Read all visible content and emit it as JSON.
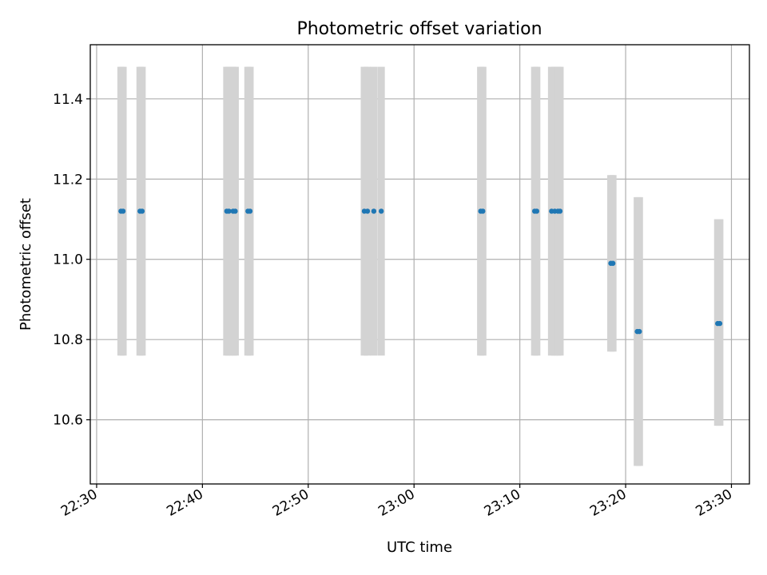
{
  "chart_data": {
    "type": "scatter",
    "title": "Photometric offset variation",
    "xlabel": "UTC time",
    "ylabel": "Photometric offset",
    "x_ticks": [
      "22:30",
      "22:40",
      "22:50",
      "23:00",
      "23:10",
      "23:20",
      "23:30"
    ],
    "y_ticks": [
      "10.6",
      "10.8",
      "11.0",
      "11.2",
      "11.4"
    ],
    "xlim": [
      "22:29.4",
      "23:31.7"
    ],
    "ylim": [
      10.44,
      11.535
    ],
    "grid": true,
    "colors": {
      "points": "#1f77b4",
      "error_bars": "#d3d3d3",
      "grid": "#b0b0b0"
    },
    "points": [
      {
        "x": "22:32.3",
        "y": 11.12,
        "err_low": 10.76,
        "err_high": 11.48
      },
      {
        "x": "22:32.5",
        "y": 11.12,
        "err_low": 10.76,
        "err_high": 11.48
      },
      {
        "x": "22:34.1",
        "y": 11.12,
        "err_low": 10.76,
        "err_high": 11.48
      },
      {
        "x": "22:34.3",
        "y": 11.12,
        "err_low": 10.76,
        "err_high": 11.48
      },
      {
        "x": "22:42.3",
        "y": 11.12,
        "err_low": 10.76,
        "err_high": 11.48
      },
      {
        "x": "22:42.5",
        "y": 11.12,
        "err_low": 10.76,
        "err_high": 11.48
      },
      {
        "x": "22:42.9",
        "y": 11.12,
        "err_low": 10.76,
        "err_high": 11.48
      },
      {
        "x": "22:43.1",
        "y": 11.12,
        "err_low": 10.76,
        "err_high": 11.48
      },
      {
        "x": "22:44.3",
        "y": 11.12,
        "err_low": 10.76,
        "err_high": 11.48
      },
      {
        "x": "22:44.5",
        "y": 11.12,
        "err_low": 10.76,
        "err_high": 11.48
      },
      {
        "x": "22:55.3",
        "y": 11.12,
        "err_low": 10.76,
        "err_high": 11.48
      },
      {
        "x": "22:55.6",
        "y": 11.12,
        "err_low": 10.76,
        "err_high": 11.48
      },
      {
        "x": "22:56.2",
        "y": 11.12,
        "err_low": 10.76,
        "err_high": 11.48
      },
      {
        "x": "22:56.9",
        "y": 11.12,
        "err_low": 10.76,
        "err_high": 11.48
      },
      {
        "x": "23:06.3",
        "y": 11.12,
        "err_low": 10.76,
        "err_high": 11.48
      },
      {
        "x": "23:06.5",
        "y": 11.12,
        "err_low": 10.76,
        "err_high": 11.48
      },
      {
        "x": "23:11.4",
        "y": 11.12,
        "err_low": 10.76,
        "err_high": 11.48
      },
      {
        "x": "23:11.6",
        "y": 11.12,
        "err_low": 10.76,
        "err_high": 11.48
      },
      {
        "x": "23:13.0",
        "y": 11.12,
        "err_low": 10.76,
        "err_high": 11.48
      },
      {
        "x": "23:13.3",
        "y": 11.12,
        "err_low": 10.76,
        "err_high": 11.48
      },
      {
        "x": "23:13.6",
        "y": 11.12,
        "err_low": 10.76,
        "err_high": 11.48
      },
      {
        "x": "23:13.8",
        "y": 11.12,
        "err_low": 10.76,
        "err_high": 11.48
      },
      {
        "x": "23:18.6",
        "y": 10.99,
        "err_low": 10.77,
        "err_high": 11.21
      },
      {
        "x": "23:18.8",
        "y": 10.99,
        "err_low": 10.77,
        "err_high": 11.21
      },
      {
        "x": "23:21.1",
        "y": 10.82,
        "err_low": 10.485,
        "err_high": 11.155
      },
      {
        "x": "23:21.3",
        "y": 10.82,
        "err_low": 10.485,
        "err_high": 11.155
      },
      {
        "x": "23:28.7",
        "y": 10.84,
        "err_low": 10.585,
        "err_high": 11.1
      },
      {
        "x": "23:28.9",
        "y": 10.84,
        "err_low": 10.585,
        "err_high": 11.1
      }
    ]
  }
}
